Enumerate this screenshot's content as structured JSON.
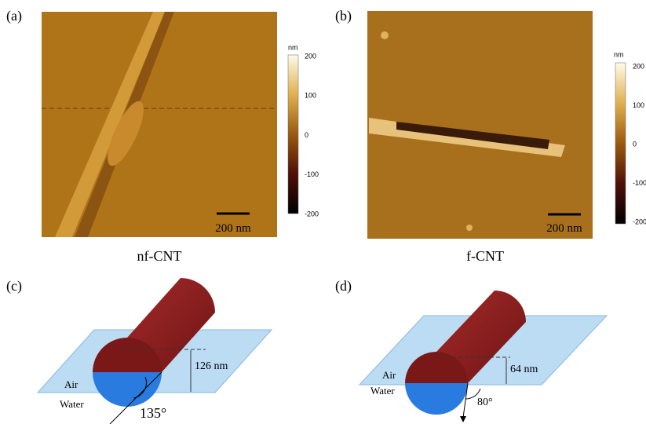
{
  "panels": [
    {
      "label": "(a)",
      "caption": "nf-CNT",
      "scale_bar": "200 nm",
      "colorbar": {
        "unit": "nm",
        "ticks": [
          200,
          100,
          0,
          -100,
          -200
        ]
      }
    },
    {
      "label": "(b)",
      "caption": "f-CNT",
      "scale_bar": "200 nm",
      "colorbar": {
        "unit": "nm",
        "ticks": [
          200,
          100,
          0,
          -100,
          -200
        ]
      }
    }
  ],
  "diagrams": [
    {
      "label": "(c)",
      "height_label": "126 nm",
      "air": "Air",
      "water": "Water",
      "angle": "135°"
    },
    {
      "label": "(d)",
      "height_label": "64 nm",
      "air": "Air",
      "water": "Water",
      "angle": "80°"
    }
  ]
}
